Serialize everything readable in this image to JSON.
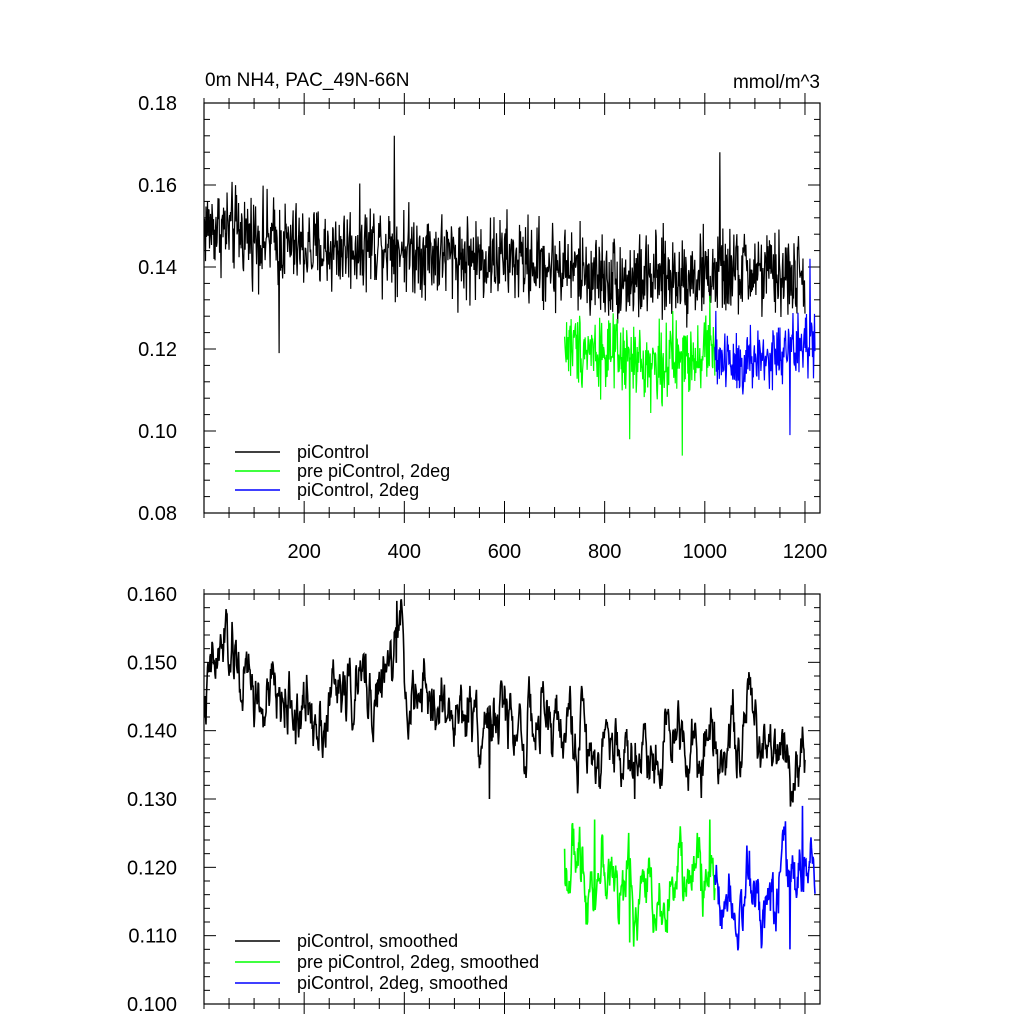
{
  "figure": {
    "title": "0m NH4, PAC_49N-66N",
    "units": "mmol/m^3"
  },
  "chart_data": [
    {
      "type": "line",
      "title": "0m NH4, PAC_49N-66N",
      "units_label": "mmol/m^3",
      "xlabel": "",
      "ylabel": "",
      "xlim": [
        0,
        1230
      ],
      "ylim": [
        0.08,
        0.18
      ],
      "x_ticks": [
        200,
        400,
        600,
        800,
        1000,
        1200
      ],
      "x_tick_labels": [
        "200",
        "400",
        "600",
        "800",
        "1000",
        "1200"
      ],
      "y_ticks": [
        0.08,
        0.1,
        0.12,
        0.14,
        0.16,
        0.18
      ],
      "y_tick_labels": [
        "0.08",
        "0.10",
        "0.12",
        "0.14",
        "0.16",
        "0.18"
      ],
      "grid": false,
      "legend_position": "bottom-left",
      "series": [
        {
          "name": "piControl",
          "color": "#000000",
          "x_start": 1,
          "x_end": 1200,
          "points": [
            [
              1,
              0.15
            ],
            [
              60,
              0.149
            ],
            [
              120,
              0.147
            ],
            [
              180,
              0.145
            ],
            [
              240,
              0.144
            ],
            [
              300,
              0.145
            ],
            [
              360,
              0.146
            ],
            [
              420,
              0.144
            ],
            [
              480,
              0.143
            ],
            [
              540,
              0.142
            ],
            [
              600,
              0.142
            ],
            [
              660,
              0.141
            ],
            [
              720,
              0.14
            ],
            [
              780,
              0.138
            ],
            [
              840,
              0.137
            ],
            [
              900,
              0.137
            ],
            [
              960,
              0.138
            ],
            [
              1020,
              0.138
            ],
            [
              1080,
              0.139
            ],
            [
              1140,
              0.138
            ],
            [
              1200,
              0.137
            ]
          ],
          "noise": 0.008,
          "spikes": [
            [
              150,
              0.119
            ],
            [
              380,
              0.172
            ],
            [
              1030,
              0.168
            ]
          ]
        },
        {
          "name": "pre piControl, 2deg",
          "color": "#00ff00",
          "x_start": 720,
          "x_end": 1020,
          "points": [
            [
              720,
              0.121
            ],
            [
              780,
              0.12
            ],
            [
              840,
              0.117
            ],
            [
              900,
              0.116
            ],
            [
              960,
              0.118
            ],
            [
              1020,
              0.121
            ]
          ],
          "noise": 0.007,
          "spikes": [
            [
              850,
              0.098
            ],
            [
              955,
              0.094
            ],
            [
              1010,
              0.133
            ]
          ]
        },
        {
          "name": "piControl, 2deg",
          "color": "#0000ff",
          "x_start": 1020,
          "x_end": 1220,
          "points": [
            [
              1020,
              0.118
            ],
            [
              1080,
              0.117
            ],
            [
              1140,
              0.118
            ],
            [
              1200,
              0.121
            ],
            [
              1220,
              0.12
            ]
          ],
          "noise": 0.007,
          "spikes": [
            [
              1170,
              0.099
            ],
            [
              1210,
              0.142
            ]
          ]
        }
      ]
    },
    {
      "type": "line",
      "title": "",
      "xlabel": "",
      "ylabel": "",
      "xlim": [
        0,
        1230
      ],
      "ylim": [
        0.1,
        0.16
      ],
      "x_ticks": [
        200,
        400,
        600,
        800,
        1000,
        1200
      ],
      "x_tick_labels": [],
      "y_ticks": [
        0.1,
        0.11,
        0.12,
        0.13,
        0.14,
        0.15,
        0.16
      ],
      "y_tick_labels": [
        "0.100",
        "0.110",
        "0.120",
        "0.130",
        "0.140",
        "0.150",
        "0.160"
      ],
      "grid": false,
      "legend_position": "bottom-left",
      "series": [
        {
          "name": "piControl, smoothed",
          "color": "#000000",
          "x_start": 1,
          "x_end": 1200,
          "points": [
            [
              1,
              0.144
            ],
            [
              40,
              0.152
            ],
            [
              80,
              0.147
            ],
            [
              120,
              0.143
            ],
            [
              160,
              0.145
            ],
            [
              200,
              0.142
            ],
            [
              240,
              0.144
            ],
            [
              280,
              0.146
            ],
            [
              320,
              0.146
            ],
            [
              360,
              0.146
            ],
            [
              390,
              0.153
            ],
            [
              420,
              0.143
            ],
            [
              460,
              0.144
            ],
            [
              500,
              0.142
            ],
            [
              540,
              0.143
            ],
            [
              580,
              0.142
            ],
            [
              620,
              0.141
            ],
            [
              660,
              0.14
            ],
            [
              700,
              0.141
            ],
            [
              740,
              0.139
            ],
            [
              780,
              0.139
            ],
            [
              820,
              0.138
            ],
            [
              860,
              0.136
            ],
            [
              900,
              0.138
            ],
            [
              940,
              0.141
            ],
            [
              980,
              0.139
            ],
            [
              1020,
              0.14
            ],
            [
              1060,
              0.139
            ],
            [
              1100,
              0.141
            ],
            [
              1140,
              0.139
            ],
            [
              1180,
              0.137
            ],
            [
              1200,
              0.137
            ]
          ],
          "noise": 0.0035,
          "spikes": [
            [
              40,
              0.155
            ],
            [
              385,
              0.159
            ],
            [
              570,
              0.13
            ],
            [
              860,
              0.13
            ]
          ]
        },
        {
          "name": "pre piControl, 2deg, smoothed",
          "color": "#00ff00",
          "x_start": 720,
          "x_end": 1020,
          "points": [
            [
              720,
              0.121
            ],
            [
              760,
              0.12
            ],
            [
              800,
              0.12
            ],
            [
              840,
              0.116
            ],
            [
              880,
              0.116
            ],
            [
              920,
              0.117
            ],
            [
              960,
              0.118
            ],
            [
              1000,
              0.12
            ],
            [
              1020,
              0.117
            ]
          ],
          "noise": 0.0035,
          "spikes": [
            [
              780,
              0.127
            ],
            [
              850,
              0.109
            ],
            [
              1010,
              0.127
            ]
          ]
        },
        {
          "name": "piControl, 2deg, smoothed",
          "color": "#0000ff",
          "x_start": 1020,
          "x_end": 1220,
          "points": [
            [
              1020,
              0.117
            ],
            [
              1060,
              0.117
            ],
            [
              1100,
              0.117
            ],
            [
              1140,
              0.118
            ],
            [
              1180,
              0.119
            ],
            [
              1220,
              0.12
            ]
          ],
          "noise": 0.0035,
          "spikes": [
            [
              1170,
              0.108
            ],
            [
              1195,
              0.129
            ]
          ]
        }
      ]
    }
  ]
}
